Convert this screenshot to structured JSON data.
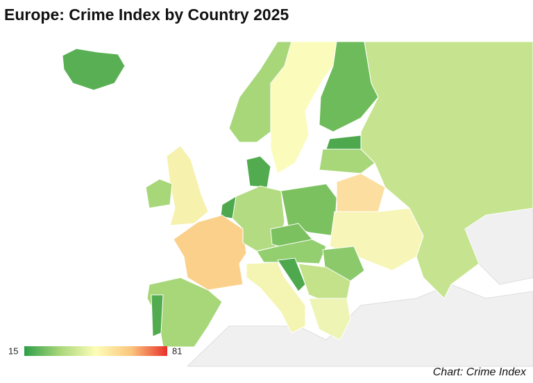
{
  "header": {
    "title": "Europe: Crime Index by Country 2025"
  },
  "legend": {
    "min": 15,
    "max": 81,
    "colors": [
      "#2e9e48",
      "#a8d77a",
      "#fdfdb8",
      "#fbc57d",
      "#e8302a"
    ]
  },
  "footer": {
    "source": "Chart: Crime Index"
  }
}
